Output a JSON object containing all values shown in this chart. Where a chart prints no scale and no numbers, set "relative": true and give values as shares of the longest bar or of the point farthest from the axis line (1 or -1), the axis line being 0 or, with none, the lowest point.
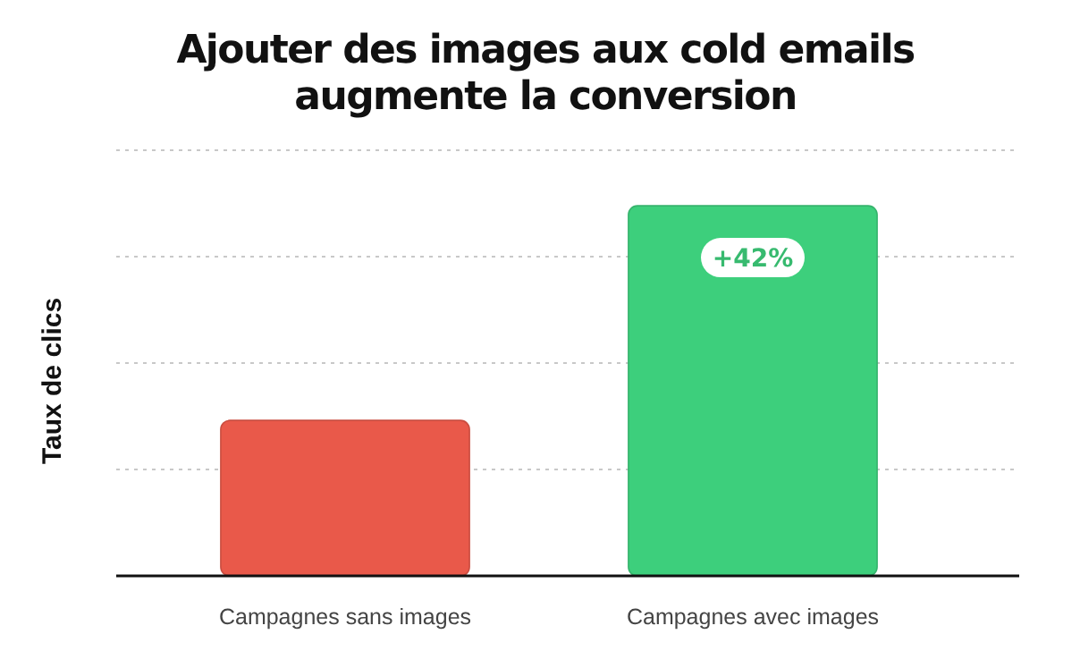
{
  "chart_data": {
    "type": "bar",
    "title": "Ajouter des images aux cold emails\naugmente la conversion",
    "ylabel": "Taux de clics",
    "categories": [
      "Campagnes sans images",
      "Campagnes avec images"
    ],
    "values": [
      0.42,
      1
    ],
    "colors": [
      "#e9594a",
      "#3dcf7c"
    ],
    "relative": true,
    "grid": "y",
    "annotations": [
      "+42%"
    ]
  }
}
